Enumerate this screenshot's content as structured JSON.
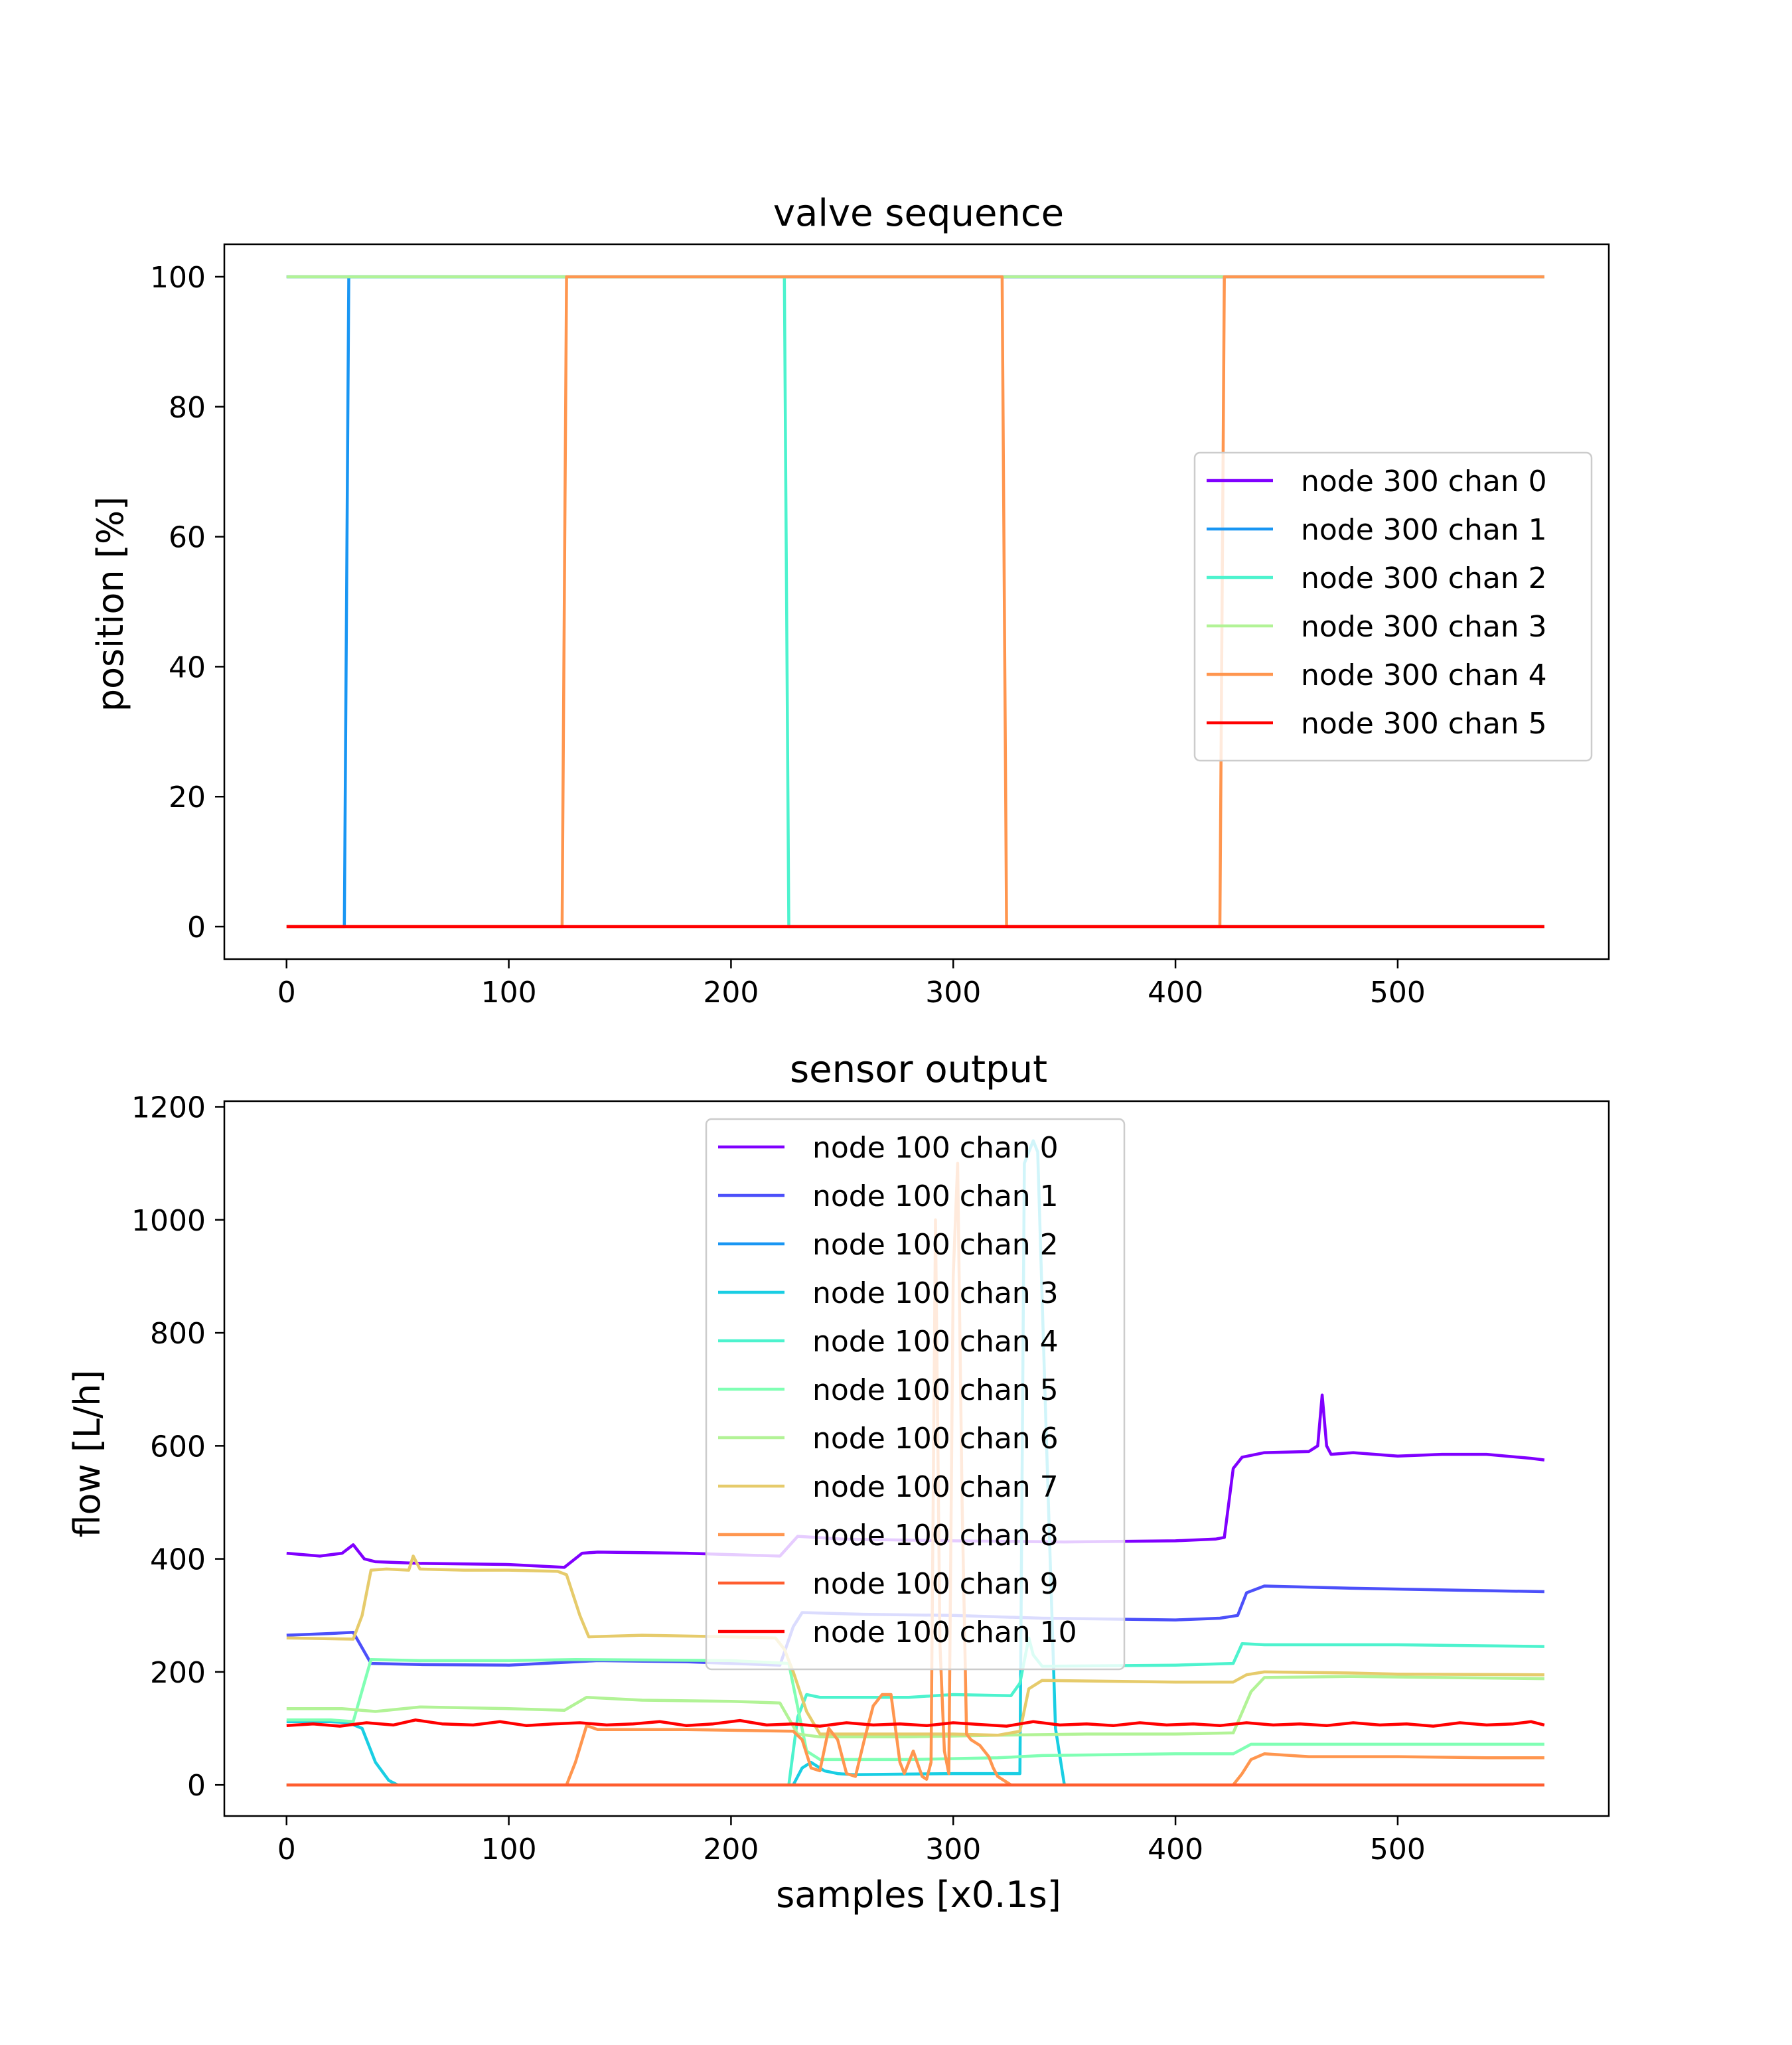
{
  "chart_data": [
    {
      "type": "line",
      "title": "valve sequence",
      "xlabel": "",
      "ylabel": "position [%]",
      "xlim": [
        -28,
        595
      ],
      "ylim": [
        -5,
        105
      ],
      "xticks": [
        0,
        100,
        200,
        300,
        400,
        500
      ],
      "yticks": [
        0,
        20,
        40,
        60,
        80,
        100
      ],
      "grid": false,
      "legend_position": "center-right",
      "series": [
        {
          "name": "node 300 chan 0",
          "color": "#8000ff",
          "x": [
            0,
            566
          ],
          "y": [
            100,
            100
          ]
        },
        {
          "name": "node 300 chan 1",
          "color": "#1996f3",
          "x": [
            0,
            26,
            28,
            566
          ],
          "y": [
            0,
            0,
            100,
            100
          ]
        },
        {
          "name": "node 300 chan 2",
          "color": "#4df3ce",
          "x": [
            0,
            224,
            226,
            566
          ],
          "y": [
            100,
            100,
            0,
            0
          ]
        },
        {
          "name": "node 300 chan 3",
          "color": "#b2f396",
          "x": [
            0,
            566
          ],
          "y": [
            100,
            100
          ]
        },
        {
          "name": "node 300 chan 4",
          "color": "#ff964f",
          "x": [
            0,
            124,
            126,
            322,
            324,
            420,
            422,
            566
          ],
          "y": [
            0,
            0,
            100,
            100,
            0,
            0,
            100,
            100
          ]
        },
        {
          "name": "node 300 chan 5",
          "color": "#ff0000",
          "x": [
            0,
            566
          ],
          "y": [
            0,
            0
          ]
        }
      ]
    },
    {
      "type": "line",
      "title": "sensor output",
      "xlabel": "samples [x0.1s]",
      "ylabel": "flow [L/h]",
      "xlim": [
        -28,
        595
      ],
      "ylim": [
        -55,
        1210
      ],
      "xticks": [
        0,
        100,
        200,
        300,
        400,
        500
      ],
      "yticks": [
        0,
        200,
        400,
        600,
        800,
        1000,
        1200
      ],
      "grid": false,
      "legend_position": "upper-center",
      "series": [
        {
          "name": "node 100 chan 0",
          "color": "#8000ff",
          "x": [
            0,
            15,
            25,
            30,
            35,
            40,
            60,
            100,
            125,
            133,
            140,
            180,
            222,
            230,
            250,
            300,
            350,
            400,
            418,
            422,
            426,
            430,
            440,
            460,
            464,
            466,
            468,
            470,
            480,
            500,
            520,
            540,
            560,
            566
          ],
          "y": [
            410,
            405,
            410,
            425,
            400,
            395,
            392,
            390,
            385,
            410,
            412,
            410,
            405,
            440,
            435,
            432,
            430,
            432,
            435,
            438,
            560,
            580,
            588,
            590,
            600,
            690,
            600,
            585,
            588,
            582,
            585,
            585,
            578,
            575
          ]
        },
        {
          "name": "node 100 chan 1",
          "color": "#4c50fa",
          "x": [
            0,
            20,
            30,
            38,
            60,
            100,
            130,
            140,
            180,
            222,
            228,
            232,
            260,
            300,
            340,
            400,
            420,
            428,
            432,
            440,
            480,
            520,
            566
          ],
          "y": [
            265,
            268,
            270,
            215,
            213,
            212,
            218,
            220,
            218,
            212,
            280,
            305,
            302,
            300,
            295,
            292,
            295,
            300,
            340,
            352,
            348,
            345,
            342
          ]
        },
        {
          "name": "node 100 chan 2",
          "color": "#1996f3",
          "x": [
            0,
            566
          ],
          "y": [
            0,
            0
          ]
        },
        {
          "name": "node 100 chan 3",
          "color": "#19cee3",
          "x": [
            0,
            20,
            28,
            34,
            40,
            46,
            50,
            228,
            232,
            236,
            242,
            248,
            255,
            300,
            330,
            332,
            336,
            338,
            342,
            346,
            350,
            566
          ],
          "y": [
            112,
            112,
            110,
            100,
            40,
            8,
            0,
            0,
            30,
            40,
            25,
            20,
            18,
            20,
            20,
            1100,
            1140,
            1120,
            600,
            100,
            0,
            0
          ]
        },
        {
          "name": "node 100 chan 4",
          "color": "#4df3ce",
          "x": [
            0,
            226,
            230,
            234,
            240,
            280,
            300,
            326,
            330,
            334,
            336,
            340,
            400,
            426,
            430,
            440,
            500,
            566
          ],
          "y": [
            0,
            0,
            120,
            160,
            155,
            155,
            160,
            158,
            180,
            260,
            230,
            210,
            212,
            215,
            250,
            248,
            248,
            245
          ]
        },
        {
          "name": "node 100 chan 5",
          "color": "#80ffb4",
          "x": [
            0,
            20,
            30,
            38,
            60,
            100,
            130,
            200,
            226,
            234,
            240,
            280,
            320,
            340,
            400,
            426,
            434,
            460,
            500,
            566
          ],
          "y": [
            115,
            115,
            112,
            222,
            220,
            220,
            222,
            220,
            215,
            60,
            45,
            45,
            48,
            52,
            55,
            55,
            72,
            72,
            72,
            72
          ]
        },
        {
          "name": "node 100 chan 6",
          "color": "#b2f396",
          "x": [
            0,
            25,
            40,
            60,
            100,
            125,
            135,
            160,
            200,
            222,
            230,
            240,
            280,
            320,
            360,
            400,
            426,
            434,
            440,
            480,
            520,
            566
          ],
          "y": [
            135,
            135,
            130,
            138,
            135,
            132,
            155,
            150,
            148,
            145,
            90,
            85,
            85,
            88,
            90,
            90,
            92,
            165,
            190,
            192,
            190,
            188
          ]
        },
        {
          "name": "node 100 chan 7",
          "color": "#e6cb6b",
          "x": [
            0,
            30,
            34,
            38,
            45,
            55,
            57,
            60,
            80,
            100,
            122,
            126,
            132,
            136,
            160,
            200,
            220,
            224,
            228,
            234,
            240,
            300,
            320,
            330,
            334,
            340,
            400,
            426,
            432,
            440,
            480,
            500,
            566
          ],
          "y": [
            260,
            258,
            300,
            380,
            382,
            380,
            405,
            382,
            380,
            380,
            378,
            372,
            300,
            262,
            265,
            262,
            260,
            240,
            200,
            130,
            90,
            90,
            88,
            95,
            170,
            185,
            182,
            182,
            195,
            200,
            198,
            196,
            195
          ]
        },
        {
          "name": "node 100 chan 8",
          "color": "#ff964f",
          "x": [
            0,
            126,
            130,
            135,
            140,
            180,
            228,
            232,
            236,
            240,
            244,
            248,
            252,
            256,
            260,
            264,
            268,
            272,
            276,
            278,
            282,
            286,
            288,
            290,
            292,
            294,
            296,
            298,
            300,
            302,
            304,
            306,
            308,
            312,
            316,
            318,
            320,
            322,
            326,
            426,
            430,
            434,
            440,
            460,
            500,
            540,
            566
          ],
          "y": [
            0,
            0,
            40,
            105,
            98,
            98,
            95,
            80,
            30,
            25,
            100,
            80,
            20,
            15,
            80,
            140,
            160,
            160,
            40,
            20,
            60,
            15,
            10,
            40,
            1000,
            250,
            60,
            20,
            900,
            1100,
            500,
            90,
            80,
            70,
            50,
            30,
            15,
            10,
            0,
            0,
            20,
            45,
            55,
            50,
            50,
            48,
            48
          ]
        },
        {
          "name": "node 100 chan 9",
          "color": "#ff5d2f",
          "x": [
            0,
            566
          ],
          "y": [
            0,
            0
          ]
        },
        {
          "name": "node 100 chan 10",
          "color": "#ff0000",
          "x": [
            0,
            12,
            24,
            36,
            48,
            58,
            70,
            84,
            96,
            108,
            120,
            132,
            144,
            156,
            168,
            180,
            192,
            204,
            216,
            228,
            240,
            252,
            264,
            276,
            288,
            300,
            312,
            324,
            336,
            348,
            360,
            372,
            384,
            396,
            408,
            420,
            432,
            444,
            456,
            468,
            480,
            492,
            504,
            516,
            528,
            540,
            552,
            560,
            566
          ],
          "y": [
            105,
            108,
            104,
            110,
            106,
            115,
            108,
            106,
            112,
            105,
            108,
            110,
            106,
            108,
            112,
            105,
            108,
            114,
            106,
            108,
            104,
            110,
            106,
            108,
            105,
            110,
            107,
            104,
            112,
            106,
            108,
            105,
            110,
            106,
            108,
            105,
            110,
            106,
            108,
            105,
            110,
            106,
            108,
            104,
            110,
            106,
            108,
            112,
            106
          ]
        }
      ]
    }
  ]
}
